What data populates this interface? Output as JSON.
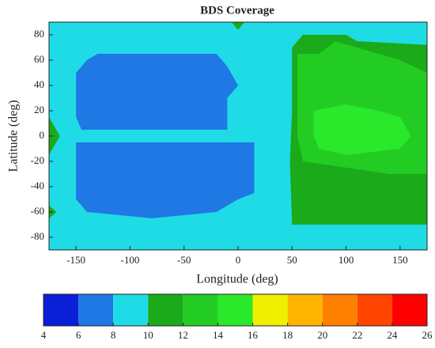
{
  "chart_data": {
    "type": "contour",
    "title": "BDS Coverage",
    "x_label": "Longitude (deg)",
    "y_label": "Latitude (deg)",
    "xlim": [
      -175,
      175
    ],
    "ylim": [
      -90,
      90
    ],
    "xticks": [
      -150,
      -100,
      -50,
      0,
      50,
      100,
      150
    ],
    "yticks": [
      -80,
      -60,
      -40,
      -20,
      0,
      20,
      40,
      60,
      80
    ],
    "background_level": 8,
    "regions": [
      {
        "level": 6,
        "points": [
          [
            -150,
            50
          ],
          [
            -140,
            60
          ],
          [
            -130,
            65
          ],
          [
            -20,
            65
          ],
          [
            -10,
            55
          ],
          [
            0,
            40
          ],
          [
            -10,
            30
          ],
          [
            -10,
            5
          ],
          [
            -145,
            5
          ],
          [
            -150,
            15
          ]
        ]
      },
      {
        "level": 6,
        "points": [
          [
            -150,
            -5
          ],
          [
            15,
            -5
          ],
          [
            15,
            -45
          ],
          [
            0,
            -50
          ],
          [
            -20,
            -60
          ],
          [
            -80,
            -65
          ],
          [
            -140,
            -60
          ],
          [
            -150,
            -50
          ]
        ]
      },
      {
        "level": 10,
        "points": [
          [
            50,
            70
          ],
          [
            60,
            80
          ],
          [
            100,
            80
          ],
          [
            110,
            75
          ],
          [
            175,
            72
          ],
          [
            175,
            -70
          ],
          [
            50,
            -70
          ],
          [
            48,
            -20
          ],
          [
            50,
            20
          ]
        ]
      },
      {
        "level": 12,
        "points": [
          [
            55,
            65
          ],
          [
            75,
            65
          ],
          [
            90,
            75
          ],
          [
            150,
            60
          ],
          [
            175,
            50
          ],
          [
            175,
            -30
          ],
          [
            140,
            -30
          ],
          [
            100,
            -25
          ],
          [
            60,
            -20
          ],
          [
            55,
            0
          ]
        ]
      },
      {
        "level": 14,
        "points": [
          [
            70,
            20
          ],
          [
            100,
            25
          ],
          [
            130,
            20
          ],
          [
            150,
            15
          ],
          [
            160,
            0
          ],
          [
            150,
            -10
          ],
          [
            100,
            -15
          ],
          [
            75,
            -10
          ],
          [
            70,
            0
          ]
        ]
      },
      {
        "level": 10,
        "points": [
          [
            -175,
            15
          ],
          [
            -165,
            0
          ],
          [
            -175,
            -15
          ]
        ]
      },
      {
        "level": 10,
        "points": [
          [
            -175,
            -55
          ],
          [
            -168,
            -60
          ],
          [
            -175,
            -65
          ]
        ]
      },
      {
        "level": 10,
        "points": [
          [
            -6,
            90
          ],
          [
            6,
            90
          ],
          [
            0,
            84
          ]
        ]
      }
    ],
    "colorbar": {
      "ticks": [
        4,
        6,
        8,
        10,
        12,
        14,
        16,
        18,
        20,
        22,
        24,
        26
      ],
      "colors": [
        "#0a1fd8",
        "#1f78e3",
        "#1fdbe6",
        "#1aaa1a",
        "#22cc22",
        "#2ae82a",
        "#eef000",
        "#ffb400",
        "#ff7f00",
        "#ff4400",
        "#ff0000"
      ]
    }
  }
}
